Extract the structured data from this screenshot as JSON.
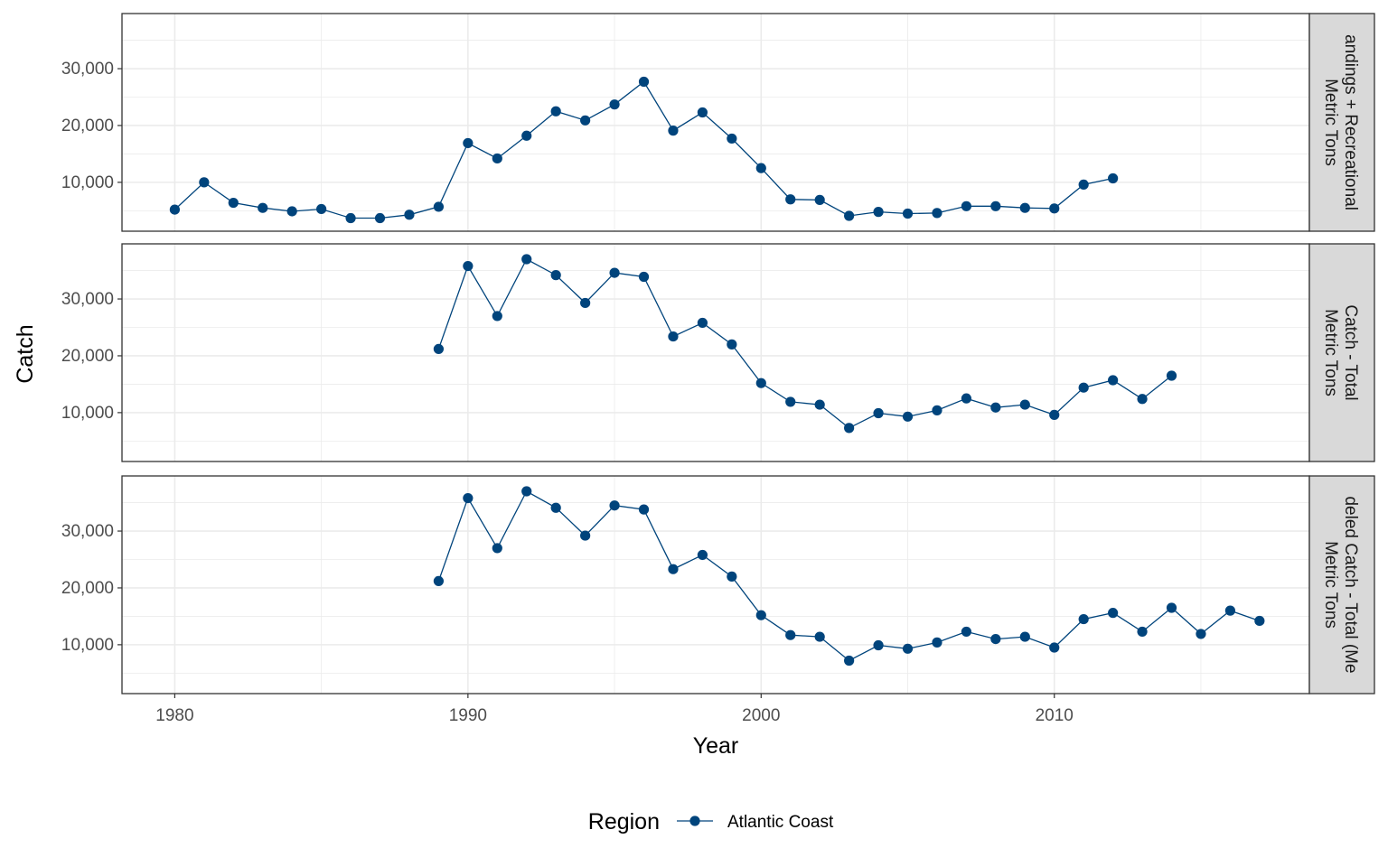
{
  "chart_data": {
    "type": "line",
    "xlabel": "Year",
    "ylabel": "Catch",
    "xlim": [
      1978.2,
      2018.7
    ],
    "ylim": [
      1400,
      39700
    ],
    "x_ticks": [
      1980,
      1990,
      2000,
      2010
    ],
    "y_ticks": [
      10000,
      20000,
      30000
    ],
    "y_tick_labels": [
      "10,000",
      "20,000",
      "30,000"
    ],
    "grid": true,
    "legend": {
      "title": "Region",
      "position": "bottom",
      "entries": [
        "Atlantic Coast"
      ]
    },
    "colors": {
      "series": "#00447c",
      "strip_bg": "#d9d9d9",
      "grid": "#ebebeb"
    },
    "panels": [
      {
        "strip": [
          "andings + Recreational",
          "Metric Tons"
        ],
        "series": [
          {
            "name": "Atlantic Coast",
            "x": [
              1980,
              1981,
              1982,
              1983,
              1984,
              1985,
              1986,
              1987,
              1988,
              1989,
              1990,
              1991,
              1992,
              1993,
              1994,
              1995,
              1996,
              1997,
              1998,
              1999,
              2000,
              2001,
              2002,
              2003,
              2004,
              2005,
              2006,
              2007,
              2008,
              2009,
              2010,
              2011,
              2012
            ],
            "y": [
              5200,
              10000,
              6400,
              5500,
              4900,
              5300,
              3700,
              3700,
              4300,
              5700,
              16900,
              14200,
              18200,
              22500,
              20900,
              23700,
              27700,
              19100,
              22300,
              17700,
              12500,
              7000,
              6900,
              4100,
              4800,
              4500,
              4600,
              5800,
              5800,
              5500,
              5400,
              9600,
              10700
            ]
          }
        ]
      },
      {
        "strip": [
          "Catch - Total",
          "Metric Tons"
        ],
        "series": [
          {
            "name": "Atlantic Coast",
            "x": [
              1989,
              1990,
              1991,
              1992,
              1993,
              1994,
              1995,
              1996,
              1997,
              1998,
              1999,
              2000,
              2001,
              2002,
              2003,
              2004,
              2005,
              2006,
              2007,
              2008,
              2009,
              2010,
              2011,
              2012,
              2013,
              2014
            ],
            "y": [
              21200,
              35800,
              27000,
              37000,
              34200,
              29300,
              34600,
              33900,
              23400,
              25800,
              22000,
              15200,
              11900,
              11400,
              7300,
              9900,
              9300,
              10400,
              12500,
              10900,
              11400,
              9600,
              14400,
              15700,
              12400,
              16500
            ]
          }
        ]
      },
      {
        "strip": [
          "deled Catch - Total (Me",
          "Metric Tons"
        ],
        "series": [
          {
            "name": "Atlantic Coast",
            "x": [
              1989,
              1990,
              1991,
              1992,
              1993,
              1994,
              1995,
              1996,
              1997,
              1998,
              1999,
              2000,
              2001,
              2002,
              2003,
              2004,
              2005,
              2006,
              2007,
              2008,
              2009,
              2010,
              2011,
              2012,
              2013,
              2014,
              2015,
              2016,
              2017
            ],
            "y": [
              21200,
              35800,
              27000,
              37000,
              34100,
              29200,
              34500,
              33800,
              23300,
              25800,
              22000,
              15200,
              11700,
              11400,
              7200,
              9900,
              9300,
              10400,
              12300,
              11000,
              11400,
              9500,
              14500,
              15600,
              12300,
              16500,
              11900,
              16000,
              14200
            ]
          }
        ]
      }
    ]
  }
}
